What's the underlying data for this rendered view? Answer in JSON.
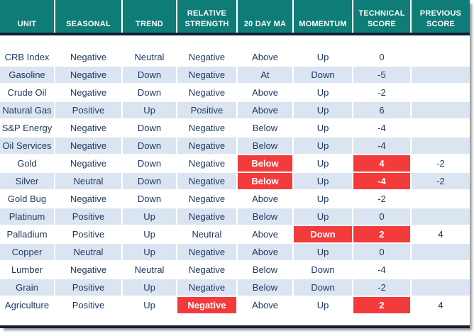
{
  "colors": {
    "header_bg": "#0e7c77",
    "header_text": "#ffffff",
    "row_stripe": "#dbe5f1",
    "body_text": "#1f3864",
    "highlight_red": "#f43b3c",
    "highlight_text": "#ffffff",
    "divider_bar": "#141e33"
  },
  "chart_data": {
    "type": "table",
    "columns": [
      "UNIT",
      "SEASONAL",
      "TREND",
      "RELATIVE STRENGTH",
      "20 DAY MA",
      "MOMENTUM",
      "TECHNICAL SCORE",
      "PREVIOUS SCORE"
    ],
    "rows": [
      [
        "CRB Index",
        "Negative",
        "Neutral",
        "Negative",
        "Above",
        "Up",
        "0",
        ""
      ],
      [
        "Gasoline",
        "Negative",
        "Down",
        "Negative",
        "At",
        "Down",
        "-5",
        ""
      ],
      [
        "Crude Oil",
        "Negative",
        "Down",
        "Negative",
        "Above",
        "Up",
        "-2",
        ""
      ],
      [
        "Natural Gas",
        "Positive",
        "Up",
        "Positive",
        "Above",
        "Up",
        "6",
        ""
      ],
      [
        "S&P Energy",
        "Negative",
        "Down",
        "Negative",
        "Below",
        "Up",
        "-4",
        ""
      ],
      [
        "Oil Services",
        "Negative",
        "Down",
        "Negative",
        "Below",
        "Up",
        "-4",
        ""
      ],
      [
        "Gold",
        "Negative",
        "Down",
        "Negative",
        "Below",
        "Up",
        "4",
        "-2"
      ],
      [
        "Silver",
        "Neutral",
        "Down",
        "Negative",
        "Below",
        "Up",
        "-4",
        "-2"
      ],
      [
        "Gold Bug",
        "Negative",
        "Down",
        "Negative",
        "Above",
        "Up",
        "-2",
        ""
      ],
      [
        "Platinum",
        "Positive",
        "Up",
        "Negative",
        "Below",
        "Up",
        "0",
        ""
      ],
      [
        "Palladium",
        "Positive",
        "Up",
        "Neutral",
        "Above",
        "Down",
        "2",
        "4"
      ],
      [
        "Copper",
        "Neutral",
        "Up",
        "Negative",
        "Above",
        "Up",
        "0",
        ""
      ],
      [
        "Lumber",
        "Negative",
        "Neutral",
        "Negative",
        "Below",
        "Down",
        "-4",
        ""
      ],
      [
        "Grain",
        "Positive",
        "Up",
        "Negative",
        "Below",
        "Down",
        "-2",
        ""
      ],
      [
        "Agriculture",
        "Positive",
        "Up",
        "Negative",
        "Above",
        "Up",
        "2",
        "4"
      ]
    ],
    "highlighted_cells": [
      [
        6,
        4
      ],
      [
        6,
        6
      ],
      [
        7,
        4
      ],
      [
        7,
        6
      ],
      [
        10,
        5
      ],
      [
        10,
        6
      ],
      [
        14,
        3
      ],
      [
        14,
        6
      ]
    ],
    "highlight_meaning": "red cell with white bold text"
  }
}
